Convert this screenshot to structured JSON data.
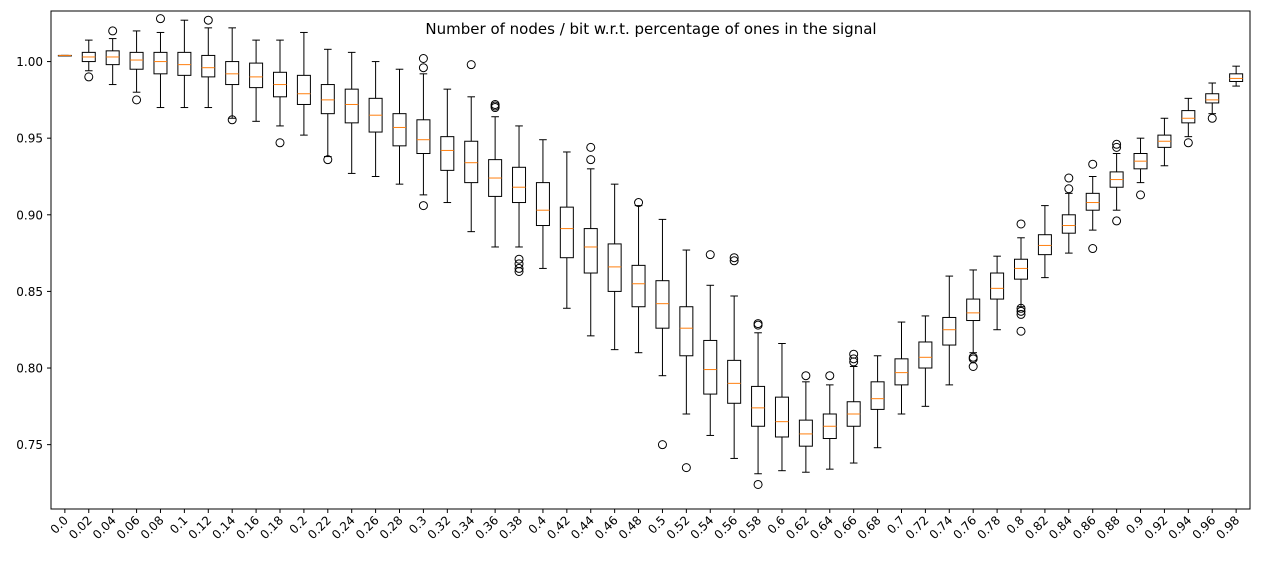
{
  "chart_data": {
    "type": "box",
    "title": "Number of nodes / bit w.r.t. percentage of ones in the signal",
    "xlabel": "",
    "ylabel": "",
    "ylim": [
      0.708,
      1.033
    ],
    "y_ticks": [
      "0.75",
      "0.80",
      "0.85",
      "0.90",
      "0.95",
      "1.00"
    ],
    "grid": false,
    "colors": {
      "box": "#000000",
      "median": "#ff7f0e",
      "outlier": "#000000",
      "background": "#ffffff"
    },
    "categories": [
      "0.0",
      "0.02",
      "0.04",
      "0.06",
      "0.08",
      "0.1",
      "0.12",
      "0.14",
      "0.16",
      "0.18",
      "0.2",
      "0.22",
      "0.24",
      "0.26",
      "0.28",
      "0.3",
      "0.32",
      "0.34",
      "0.36",
      "0.38",
      "0.4",
      "0.42",
      "0.44",
      "0.46",
      "0.48",
      "0.5",
      "0.52",
      "0.54",
      "0.56",
      "0.58",
      "0.6",
      "0.62",
      "0.64",
      "0.66",
      "0.68",
      "0.7",
      "0.72",
      "0.74",
      "0.76",
      "0.78",
      "0.8",
      "0.82",
      "0.84",
      "0.86",
      "0.88",
      "0.9",
      "0.92",
      "0.94",
      "0.96",
      "0.98"
    ],
    "boxes": [
      {
        "whislo": 1.004,
        "q1": 1.004,
        "med": 1.004,
        "q3": 1.004,
        "whishi": 1.004,
        "fliers": []
      },
      {
        "whislo": 0.994,
        "q1": 1.0,
        "med": 1.003,
        "q3": 1.006,
        "whishi": 1.014,
        "fliers": [
          0.99
        ]
      },
      {
        "whislo": 0.985,
        "q1": 0.998,
        "med": 1.003,
        "q3": 1.007,
        "whishi": 1.015,
        "fliers": [
          1.02
        ]
      },
      {
        "whislo": 0.98,
        "q1": 0.995,
        "med": 1.001,
        "q3": 1.006,
        "whishi": 1.02,
        "fliers": [
          0.975
        ]
      },
      {
        "whislo": 0.97,
        "q1": 0.992,
        "med": 1.0,
        "q3": 1.006,
        "whishi": 1.019,
        "fliers": [
          1.028
        ]
      },
      {
        "whislo": 0.97,
        "q1": 0.991,
        "med": 0.998,
        "q3": 1.006,
        "whishi": 1.027,
        "fliers": []
      },
      {
        "whislo": 0.97,
        "q1": 0.99,
        "med": 0.996,
        "q3": 1.004,
        "whishi": 1.022,
        "fliers": [
          1.027
        ]
      },
      {
        "whislo": 0.963,
        "q1": 0.985,
        "med": 0.992,
        "q3": 1.0,
        "whishi": 1.022,
        "fliers": [
          0.962
        ]
      },
      {
        "whislo": 0.961,
        "q1": 0.983,
        "med": 0.99,
        "q3": 0.999,
        "whishi": 1.014,
        "fliers": []
      },
      {
        "whislo": 0.958,
        "q1": 0.977,
        "med": 0.985,
        "q3": 0.993,
        "whishi": 1.014,
        "fliers": [
          0.947
        ]
      },
      {
        "whislo": 0.952,
        "q1": 0.972,
        "med": 0.979,
        "q3": 0.991,
        "whishi": 1.019,
        "fliers": []
      },
      {
        "whislo": 0.938,
        "q1": 0.966,
        "med": 0.975,
        "q3": 0.985,
        "whishi": 1.008,
        "fliers": [
          0.936
        ]
      },
      {
        "whislo": 0.927,
        "q1": 0.96,
        "med": 0.972,
        "q3": 0.982,
        "whishi": 1.006,
        "fliers": []
      },
      {
        "whislo": 0.925,
        "q1": 0.954,
        "med": 0.965,
        "q3": 0.976,
        "whishi": 1.0,
        "fliers": []
      },
      {
        "whislo": 0.92,
        "q1": 0.945,
        "med": 0.957,
        "q3": 0.966,
        "whishi": 0.995,
        "fliers": []
      },
      {
        "whislo": 0.913,
        "q1": 0.94,
        "med": 0.949,
        "q3": 0.962,
        "whishi": 0.992,
        "fliers": [
          0.906,
          0.996,
          1.002
        ]
      },
      {
        "whislo": 0.908,
        "q1": 0.929,
        "med": 0.942,
        "q3": 0.951,
        "whishi": 0.982,
        "fliers": []
      },
      {
        "whislo": 0.889,
        "q1": 0.921,
        "med": 0.934,
        "q3": 0.948,
        "whishi": 0.977,
        "fliers": [
          0.998
        ]
      },
      {
        "whislo": 0.879,
        "q1": 0.912,
        "med": 0.924,
        "q3": 0.936,
        "whishi": 0.964,
        "fliers": [
          0.97,
          0.971,
          0.972
        ]
      },
      {
        "whislo": 0.879,
        "q1": 0.908,
        "med": 0.918,
        "q3": 0.931,
        "whishi": 0.958,
        "fliers": [
          0.863,
          0.865,
          0.868,
          0.871
        ]
      },
      {
        "whislo": 0.865,
        "q1": 0.893,
        "med": 0.903,
        "q3": 0.921,
        "whishi": 0.949,
        "fliers": []
      },
      {
        "whislo": 0.839,
        "q1": 0.872,
        "med": 0.891,
        "q3": 0.905,
        "whishi": 0.941,
        "fliers": []
      },
      {
        "whislo": 0.821,
        "q1": 0.862,
        "med": 0.879,
        "q3": 0.891,
        "whishi": 0.93,
        "fliers": [
          0.936,
          0.944
        ]
      },
      {
        "whislo": 0.812,
        "q1": 0.85,
        "med": 0.866,
        "q3": 0.881,
        "whishi": 0.92,
        "fliers": []
      },
      {
        "whislo": 0.81,
        "q1": 0.84,
        "med": 0.855,
        "q3": 0.867,
        "whishi": 0.906,
        "fliers": [
          0.908
        ]
      },
      {
        "whislo": 0.795,
        "q1": 0.826,
        "med": 0.842,
        "q3": 0.857,
        "whishi": 0.897,
        "fliers": [
          0.75
        ]
      },
      {
        "whislo": 0.77,
        "q1": 0.808,
        "med": 0.826,
        "q3": 0.84,
        "whishi": 0.877,
        "fliers": [
          0.735
        ]
      },
      {
        "whislo": 0.756,
        "q1": 0.783,
        "med": 0.799,
        "q3": 0.818,
        "whishi": 0.854,
        "fliers": [
          0.874
        ]
      },
      {
        "whislo": 0.741,
        "q1": 0.777,
        "med": 0.79,
        "q3": 0.805,
        "whishi": 0.847,
        "fliers": [
          0.87,
          0.872
        ]
      },
      {
        "whislo": 0.731,
        "q1": 0.762,
        "med": 0.774,
        "q3": 0.788,
        "whishi": 0.823,
        "fliers": [
          0.724,
          0.828,
          0.829
        ]
      },
      {
        "whislo": 0.733,
        "q1": 0.755,
        "med": 0.765,
        "q3": 0.781,
        "whishi": 0.816,
        "fliers": []
      },
      {
        "whislo": 0.732,
        "q1": 0.749,
        "med": 0.757,
        "q3": 0.766,
        "whishi": 0.791,
        "fliers": [
          0.795
        ]
      },
      {
        "whislo": 0.734,
        "q1": 0.754,
        "med": 0.762,
        "q3": 0.77,
        "whishi": 0.789,
        "fliers": [
          0.795
        ]
      },
      {
        "whislo": 0.738,
        "q1": 0.762,
        "med": 0.77,
        "q3": 0.778,
        "whishi": 0.801,
        "fliers": [
          0.804,
          0.806,
          0.809
        ]
      },
      {
        "whislo": 0.748,
        "q1": 0.773,
        "med": 0.78,
        "q3": 0.791,
        "whishi": 0.808,
        "fliers": []
      },
      {
        "whislo": 0.77,
        "q1": 0.789,
        "med": 0.797,
        "q3": 0.806,
        "whishi": 0.83,
        "fliers": []
      },
      {
        "whislo": 0.775,
        "q1": 0.8,
        "med": 0.807,
        "q3": 0.817,
        "whishi": 0.834,
        "fliers": []
      },
      {
        "whislo": 0.789,
        "q1": 0.815,
        "med": 0.825,
        "q3": 0.833,
        "whishi": 0.86,
        "fliers": []
      },
      {
        "whislo": 0.81,
        "q1": 0.831,
        "med": 0.836,
        "q3": 0.845,
        "whishi": 0.864,
        "fliers": [
          0.801,
          0.806,
          0.807
        ]
      },
      {
        "whislo": 0.825,
        "q1": 0.845,
        "med": 0.852,
        "q3": 0.862,
        "whishi": 0.873,
        "fliers": []
      },
      {
        "whislo": 0.84,
        "q1": 0.858,
        "med": 0.865,
        "q3": 0.871,
        "whishi": 0.885,
        "fliers": [
          0.824,
          0.835,
          0.837,
          0.839,
          0.894
        ]
      },
      {
        "whislo": 0.859,
        "q1": 0.874,
        "med": 0.88,
        "q3": 0.887,
        "whishi": 0.906,
        "fliers": []
      },
      {
        "whislo": 0.875,
        "q1": 0.888,
        "med": 0.893,
        "q3": 0.9,
        "whishi": 0.914,
        "fliers": [
          0.917,
          0.924
        ]
      },
      {
        "whislo": 0.89,
        "q1": 0.903,
        "med": 0.908,
        "q3": 0.914,
        "whishi": 0.925,
        "fliers": [
          0.878,
          0.933
        ]
      },
      {
        "whislo": 0.903,
        "q1": 0.918,
        "med": 0.923,
        "q3": 0.928,
        "whishi": 0.94,
        "fliers": [
          0.896,
          0.944,
          0.946
        ]
      },
      {
        "whislo": 0.921,
        "q1": 0.93,
        "med": 0.935,
        "q3": 0.94,
        "whishi": 0.95,
        "fliers": [
          0.913
        ]
      },
      {
        "whislo": 0.932,
        "q1": 0.944,
        "med": 0.948,
        "q3": 0.952,
        "whishi": 0.963,
        "fliers": []
      },
      {
        "whislo": 0.951,
        "q1": 0.96,
        "med": 0.963,
        "q3": 0.968,
        "whishi": 0.976,
        "fliers": [
          0.947
        ]
      },
      {
        "whislo": 0.966,
        "q1": 0.973,
        "med": 0.975,
        "q3": 0.979,
        "whishi": 0.986,
        "fliers": [
          0.963
        ]
      },
      {
        "whislo": 0.984,
        "q1": 0.987,
        "med": 0.989,
        "q3": 0.992,
        "whishi": 0.997,
        "fliers": []
      }
    ]
  }
}
